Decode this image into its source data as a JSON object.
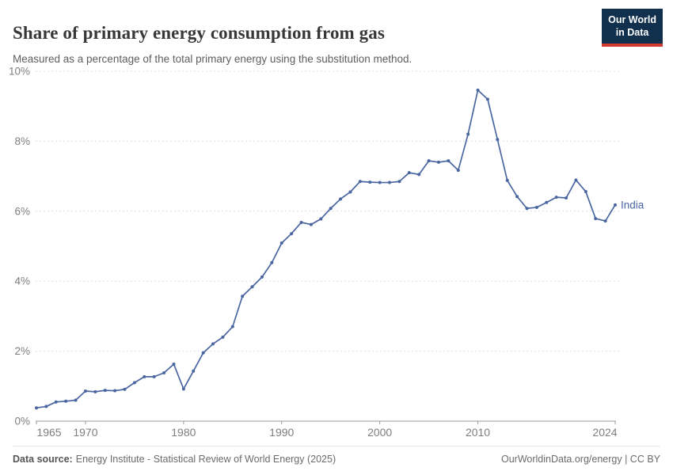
{
  "header": {
    "title": "Share of primary energy consumption from gas",
    "subtitle": "Measured as a percentage of the total primary energy using the substitution method."
  },
  "logo": {
    "line1": "Our World",
    "line2": "in Data"
  },
  "chart_data": {
    "type": "line",
    "title": "Share of primary energy consumption from gas",
    "subtitle": "Measured as a percentage of the total primary energy using the substitution method.",
    "xlabel": "",
    "ylabel": "",
    "xlim": [
      1965,
      2024
    ],
    "ylim": [
      0,
      10
    ],
    "x_ticks": [
      1965,
      1970,
      1980,
      1990,
      2000,
      2010,
      2024
    ],
    "y_ticks": [
      0,
      2,
      4,
      6,
      8,
      10
    ],
    "y_tick_labels": [
      "0%",
      "2%",
      "4%",
      "6%",
      "8%",
      "10%"
    ],
    "grid": "horizontal-dashed",
    "legend": "end-of-line-label",
    "x": [
      1965,
      1966,
      1967,
      1968,
      1969,
      1970,
      1971,
      1972,
      1973,
      1974,
      1975,
      1976,
      1977,
      1978,
      1979,
      1980,
      1981,
      1982,
      1983,
      1984,
      1985,
      1986,
      1987,
      1988,
      1989,
      1990,
      1991,
      1992,
      1993,
      1994,
      1995,
      1996,
      1997,
      1998,
      1999,
      2000,
      2001,
      2002,
      2003,
      2004,
      2005,
      2006,
      2007,
      2008,
      2009,
      2010,
      2011,
      2012,
      2013,
      2014,
      2015,
      2016,
      2017,
      2018,
      2019,
      2020,
      2021,
      2022,
      2023,
      2024
    ],
    "series": [
      {
        "name": "India",
        "color": "#4a66a0",
        "values": [
          0.38,
          0.42,
          0.55,
          0.57,
          0.6,
          0.86,
          0.84,
          0.88,
          0.87,
          0.91,
          1.1,
          1.27,
          1.27,
          1.38,
          1.63,
          0.92,
          1.43,
          1.95,
          2.21,
          2.4,
          2.7,
          3.57,
          3.84,
          4.12,
          4.53,
          5.09,
          5.36,
          5.68,
          5.62,
          5.78,
          6.08,
          6.35,
          6.55,
          6.85,
          6.83,
          6.82,
          6.82,
          6.85,
          7.1,
          7.05,
          7.44,
          7.4,
          7.44,
          7.17,
          8.2,
          9.46,
          9.2,
          8.05,
          6.88,
          6.42,
          6.08,
          6.11,
          6.25,
          6.4,
          6.38,
          6.89,
          6.56,
          5.79,
          5.72,
          6.18
        ]
      }
    ]
  },
  "footer": {
    "label": "Data source:",
    "source": "Energy Institute - Statistical Review of World Energy (2025)",
    "right": "OurWorldinData.org/energy | CC BY"
  },
  "colors": {
    "line": "#4a66a0",
    "grid": "#dedede",
    "axis": "#9a9a9a",
    "tick_label": "#7e7e7e",
    "logo_navy": "#10304e",
    "logo_red": "#d1392f"
  }
}
